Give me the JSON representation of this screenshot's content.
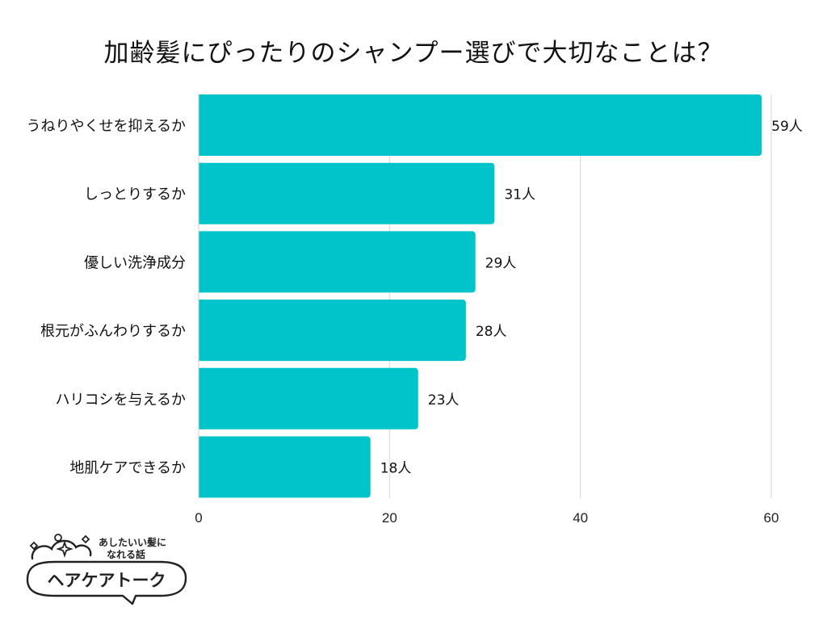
{
  "chart_data": {
    "type": "bar",
    "orientation": "horizontal",
    "title": "加齢髪にぴったりのシャンプー選びで大切なことは？",
    "categories": [
      "うねりやくせを抑えるか",
      "しっとりするか",
      "優しい洗浄成分",
      "根元がふんわりするか",
      "ハリコシを与えるか",
      "地肌ケアできるか"
    ],
    "values": [
      59,
      31,
      29,
      28,
      23,
      18
    ],
    "value_labels": [
      "59人",
      "31人",
      "29人",
      "28人",
      "23人",
      "18人"
    ],
    "xlim": [
      0,
      60
    ],
    "xticks": [
      "0",
      "20",
      "40",
      "60"
    ],
    "xlabel": "",
    "ylabel": "",
    "grid": true,
    "bar_color": "#00C4CA"
  },
  "branding": {
    "tagline_line1": "あしたいい髪に",
    "tagline_line2": "なれる話",
    "name": "ヘアケアトーク"
  }
}
